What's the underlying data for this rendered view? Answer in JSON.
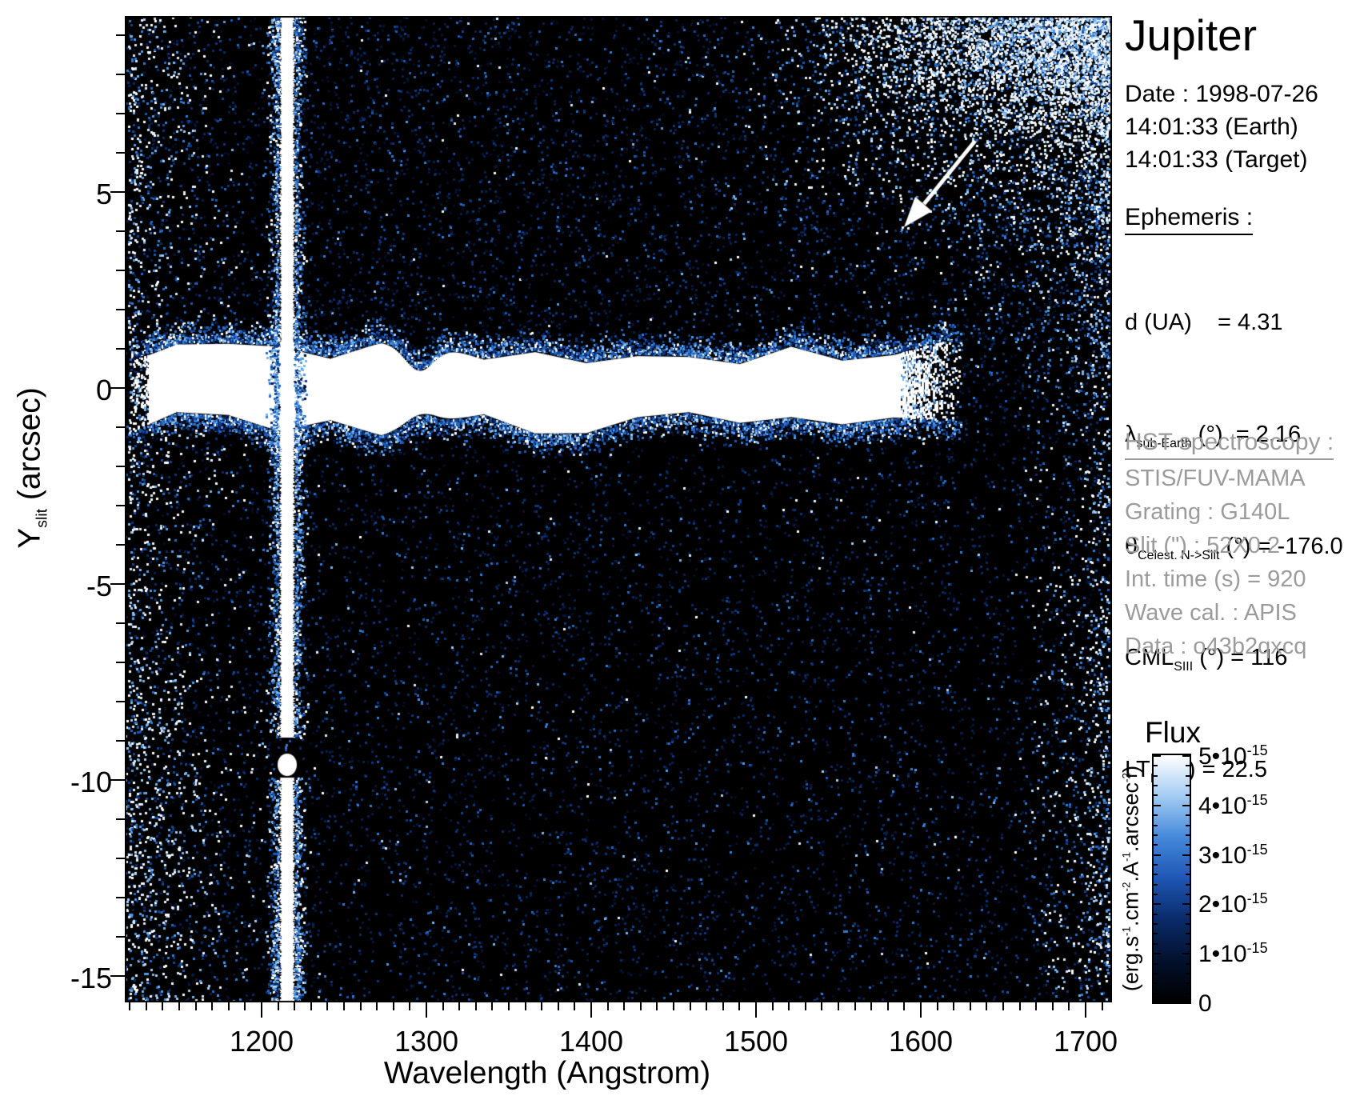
{
  "title_panel": {
    "title": "Jupiter",
    "date_lines": [
      "Date : 1998-07-26",
      "14:01:33 (Earth)",
      "14:01:33 (Target)"
    ]
  },
  "ephemeris": {
    "heading": "Ephemeris :",
    "rows": [
      {
        "sym": "d (UA)",
        "sub": "",
        "rest": "    = 4.31"
      },
      {
        "sym": "λ",
        "sub": "sub-Earth",
        "rest": " (°)  = 2.16"
      },
      {
        "sym": "θ",
        "sub": "Celest. N->Slit",
        "rest": " (°) = -176.0"
      },
      {
        "sym": "CML",
        "sub": "SIII",
        "rest": " (°) = 116"
      },
      {
        "sym": "LT",
        "sub": "Io",
        "rest": " (h) = 22.5"
      }
    ]
  },
  "hst": {
    "heading": "HST spectroscopy :",
    "lines": [
      "STIS/FUV-MAMA",
      "Grating : G140L",
      "Slit (\") : 52X0.2",
      "Int. time (s) = 920",
      "Wave cal. : APIS",
      "Data : o43b2qxcq"
    ],
    "text_color": "#9b9b9b"
  },
  "colorbar": {
    "title": "Flux",
    "ticks": [
      {
        "coef": "5•10",
        "exp": "-15"
      },
      {
        "coef": "4•10",
        "exp": "-15"
      },
      {
        "coef": "3•10",
        "exp": "-15"
      },
      {
        "coef": "2•10",
        "exp": "-15"
      },
      {
        "coef": "1•10",
        "exp": "-15"
      },
      {
        "coef": "0",
        "exp": ""
      }
    ],
    "unit": {
      "u1": "(erg.s",
      "e1": "-1",
      "u2": ".cm",
      "e2": "-2",
      "u3": ".A",
      "e3": "-1",
      "u4": ".arcsec",
      "e4": "-2",
      "u5": ")"
    },
    "gradient_bottom_to_top": [
      "#000000",
      "#03102c",
      "#0a2a68",
      "#1e56b4",
      "#4388da",
      "#a2cbf2",
      "#ffffff"
    ]
  },
  "axes": {
    "x_title": "Wavelength (Angstrom)",
    "y_title_main": "Y",
    "y_title_sub": "slit",
    "y_title_rest": " (arcsec)",
    "x_tick_labels": [
      "1200",
      "1300",
      "1400",
      "1500",
      "1600",
      "1700"
    ],
    "y_tick_labels": [
      "5",
      "0",
      "-5",
      "-10",
      "-15"
    ]
  },
  "chart_data": {
    "type": "heatmap",
    "title": "Jupiter",
    "xlabel": "Wavelength (Angstrom)",
    "ylabel": "Y slit (arcsec)",
    "xlim": [
      1117,
      1716
    ],
    "ylim": [
      -15.7,
      9.5
    ],
    "x_ticks": [
      1200,
      1300,
      1400,
      1500,
      1600,
      1700
    ],
    "x_minor_tick_step": 10,
    "y_ticks": [
      5,
      0,
      -5,
      -10,
      -15
    ],
    "y_minor_tick_step": 1,
    "grid": false,
    "colormap": "black-blue-white",
    "flux_range": [
      0,
      5e-15
    ],
    "flux_units": "erg.s-1.cm-2.A-1.arcsec-2",
    "legend_position": "right colorbar",
    "features": [
      {
        "name": "geocoronal-lyman-alpha-line",
        "wavelength_A": 1216,
        "extent": "vertical stripe over full slit, saturated white, small gap near y=-9.3 arcsec"
      },
      {
        "name": "jupiter-disk-spectrum-band",
        "y_arcsec": [
          -1.8,
          0.6
        ],
        "wavelength_A_range": [
          1130,
          1645
        ],
        "appearance": "saturated horizontal white band with blue noisy fringes"
      },
      {
        "name": "scattered-light-noise-cloud",
        "region": "upper right quadrant, intensity rising toward top-right corner",
        "wavelength_A_range": [
          1420,
          1716
        ],
        "y_arcsec_range": [
          1,
          9.5
        ]
      },
      {
        "name": "left-edge-noise-strip",
        "wavelength_A_range": [
          1117,
          1205
        ],
        "appearance": "scattered white speckles"
      },
      {
        "name": "annotation-arrow",
        "tail_data_xy": [
          1632,
          6.3
        ],
        "tip_data_xy": [
          1591,
          4.1
        ],
        "color": "#ffffff"
      }
    ]
  }
}
